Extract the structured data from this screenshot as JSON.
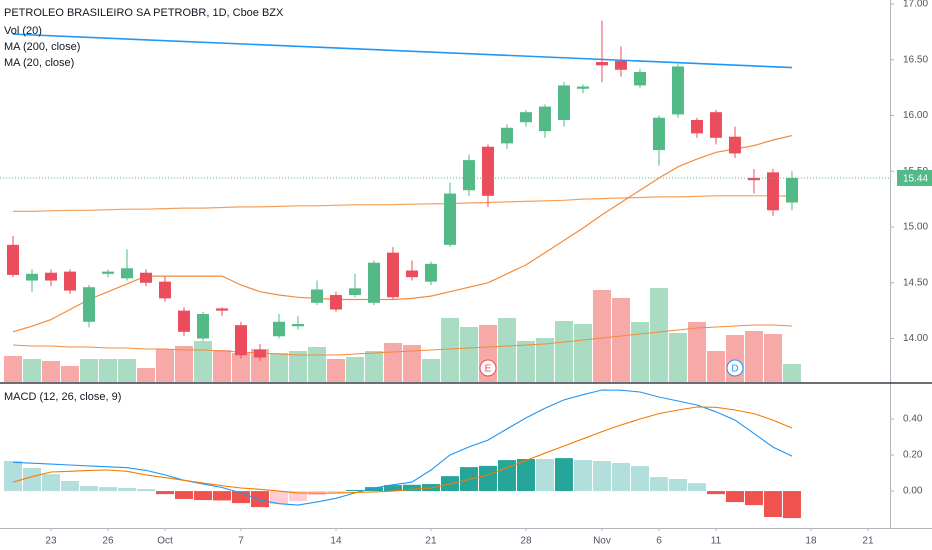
{
  "chart_data": [
    {
      "type": "candlestick",
      "title": "PETROLEO BRASILEIRO SA PETROBR, 1D, Cboe BZX",
      "open": [
        14.84,
        14.52,
        14.59,
        14.6,
        14.15,
        14.58,
        14.54,
        14.59,
        14.51,
        14.25,
        14.0,
        14.27,
        14.12,
        13.9,
        14.02,
        14.11,
        14.32,
        14.39,
        14.39,
        14.32,
        14.77,
        14.61,
        14.51,
        14.84,
        15.33,
        15.72,
        15.75,
        15.94,
        15.86,
        15.96,
        16.24,
        16.48,
        16.49,
        16.27,
        15.69,
        16.01,
        15.96,
        16.03,
        15.81,
        15.44,
        15.49,
        15.22
      ],
      "high": [
        14.92,
        14.62,
        14.62,
        14.62,
        14.48,
        14.62,
        14.8,
        14.62,
        14.56,
        14.28,
        14.24,
        14.28,
        14.15,
        13.95,
        14.22,
        14.2,
        14.52,
        14.42,
        14.58,
        14.7,
        14.82,
        14.7,
        14.69,
        15.4,
        15.65,
        15.74,
        15.92,
        16.05,
        16.1,
        16.3,
        16.28,
        16.85,
        16.62,
        16.42,
        16.0,
        16.46,
        15.98,
        16.05,
        15.9,
        15.52,
        15.52,
        15.5
      ],
      "low": [
        14.55,
        14.42,
        14.47,
        14.4,
        14.1,
        14.55,
        14.52,
        14.47,
        14.33,
        14.02,
        13.98,
        14.2,
        13.82,
        13.8,
        14.0,
        14.08,
        14.3,
        14.24,
        14.37,
        14.3,
        14.35,
        14.52,
        14.48,
        14.82,
        15.28,
        15.18,
        15.7,
        15.9,
        15.8,
        15.9,
        16.2,
        16.3,
        16.35,
        16.25,
        15.55,
        15.98,
        15.8,
        15.74,
        15.62,
        15.3,
        15.1,
        15.15
      ],
      "close": [
        14.57,
        14.58,
        14.52,
        14.43,
        14.46,
        14.6,
        14.63,
        14.5,
        14.36,
        14.06,
        14.22,
        14.25,
        13.85,
        13.83,
        14.15,
        14.13,
        14.44,
        14.26,
        14.45,
        14.68,
        14.37,
        14.55,
        14.67,
        15.3,
        15.6,
        15.28,
        15.89,
        16.03,
        16.08,
        16.27,
        16.26,
        16.45,
        16.41,
        16.39,
        15.98,
        16.44,
        15.84,
        15.8,
        15.66,
        15.42,
        15.15,
        15.44
      ],
      "up_color": "#53b987",
      "down_color": "#eb4d5c",
      "last_value": 15.44,
      "ylim": [
        13.61,
        17.036
      ],
      "yticks": [
        {
          "value": 14,
          "label": "14.00"
        },
        {
          "value": 14.5,
          "label": "14.50"
        },
        {
          "value": 15,
          "label": "15.00"
        },
        {
          "value": 15.5,
          "label": "15.50"
        },
        {
          "value": 16,
          "label": "16.00"
        },
        {
          "value": 16.5,
          "label": "16.50"
        },
        {
          "value": 17,
          "label": "17.00"
        }
      ],
      "xlim": [
        -0.684,
        46.16
      ],
      "xticks": [
        {
          "value": 2,
          "label": "23"
        },
        {
          "value": 5,
          "label": "26"
        },
        {
          "value": 8,
          "label": "Oct"
        },
        {
          "value": 12,
          "label": "7"
        },
        {
          "value": 17,
          "label": "14"
        },
        {
          "value": 22,
          "label": "21"
        },
        {
          "value": 27,
          "label": "28"
        },
        {
          "value": 31,
          "label": "Nov"
        },
        {
          "value": 34,
          "label": "6"
        },
        {
          "value": 37,
          "label": "11"
        },
        {
          "value": 42,
          "label": "18"
        },
        {
          "value": 45,
          "label": "21"
        }
      ],
      "series": [
        {
          "name": "MA (200, close)",
          "color": "#f5a05a",
          "values": [
            15.14,
            15.14,
            15.145,
            15.15,
            15.15,
            15.155,
            15.16,
            15.16,
            15.165,
            15.17,
            15.17,
            15.175,
            15.18,
            15.18,
            15.185,
            15.19,
            15.19,
            15.195,
            15.2,
            15.2,
            15.2,
            15.205,
            15.207,
            15.21,
            15.215,
            15.22,
            15.225,
            15.23,
            15.235,
            15.24,
            15.25,
            15.255,
            15.26,
            15.265,
            15.27,
            15.27,
            15.275,
            15.28,
            15.28,
            15.28,
            15.28,
            15.275
          ]
        },
        {
          "name": "MA (20, close)",
          "color": "#f28b3c",
          "values": [
            14.06,
            14.11,
            14.17,
            14.26,
            14.35,
            14.42,
            14.49,
            14.56,
            14.56,
            14.56,
            14.56,
            14.56,
            14.48,
            14.42,
            14.39,
            14.37,
            14.36,
            14.35,
            14.35,
            14.35,
            14.35,
            14.36,
            14.38,
            14.42,
            14.46,
            14.5,
            14.58,
            14.66,
            14.77,
            14.88,
            14.99,
            15.11,
            15.22,
            15.33,
            15.44,
            15.54,
            15.61,
            15.67,
            15.7,
            15.73,
            15.78,
            15.82
          ]
        }
      ],
      "volume": {
        "name": "Vol (20)",
        "up_color": "#a9dcc3",
        "down_color": "#f7a9a7",
        "ma_color": "#f28b3c",
        "ylim": [
          0,
          382
        ],
        "values": [
          26,
          23,
          21,
          16,
          23,
          23,
          23,
          14,
          33,
          36,
          41,
          32,
          29,
          33,
          29,
          31,
          35,
          23,
          25,
          31,
          39,
          37,
          23,
          64,
          55,
          57,
          64,
          41,
          44,
          61,
          58,
          92,
          84,
          60,
          94,
          49,
          60,
          31,
          47,
          51,
          48,
          18
        ],
        "ma": [
          37,
          36,
          36,
          35,
          35,
          34,
          34,
          33,
          33,
          32,
          32,
          31,
          30,
          29,
          28,
          27,
          27,
          27,
          28,
          29,
          30,
          31,
          32,
          33,
          34,
          35,
          36,
          37,
          38,
          40,
          42,
          44,
          46,
          48,
          50,
          52,
          54,
          55,
          56,
          57,
          57,
          56
        ]
      },
      "trendline": {
        "color": "#2196f3",
        "values": [
          16.73,
          16.43
        ]
      },
      "events": [
        {
          "label": "E",
          "index": 25,
          "color": "#eb4d5c"
        },
        {
          "label": "D",
          "index": 38,
          "color": "#2196f3"
        }
      ]
    },
    {
      "type": "macd",
      "title": "MACD (12, 26, close, 9)",
      "histogram": [
        0.167,
        0.128,
        0.094,
        0.056,
        0.028,
        0.022,
        0.017,
        0.011,
        -0.017,
        -0.044,
        -0.05,
        -0.052,
        -0.067,
        -0.089,
        -0.072,
        -0.056,
        -0.022,
        -0.011,
        0.006,
        0.022,
        0.033,
        0.035,
        0.039,
        0.083,
        0.133,
        0.14,
        0.172,
        0.178,
        0.178,
        0.183,
        0.172,
        0.167,
        0.156,
        0.139,
        0.078,
        0.067,
        0.044,
        -0.017,
        -0.061,
        -0.078,
        -0.144,
        -0.15
      ],
      "histogram_colors": {
        "pos_up": "#26a69a",
        "pos_down": "#b2dfdb",
        "neg_down": "#ef5350",
        "neg_up": "#ffcdd2"
      },
      "series": [
        {
          "color": "#2196f3",
          "values": [
            0.16,
            0.155,
            0.15,
            0.145,
            0.14,
            0.135,
            0.13,
            0.115,
            0.09,
            0.06,
            0.04,
            0.02,
            -0.01,
            -0.05,
            -0.07,
            -0.078,
            -0.06,
            -0.04,
            -0.01,
            0.017,
            0.035,
            0.05,
            0.117,
            0.2,
            0.245,
            0.283,
            0.345,
            0.406,
            0.46,
            0.506,
            0.535,
            0.561,
            0.56,
            0.55,
            0.522,
            0.5,
            0.478,
            0.44,
            0.394,
            0.32,
            0.244,
            0.194
          ]
        },
        {
          "color": "#f57c00",
          "values": [
            0.05,
            0.08,
            0.106,
            0.11,
            0.115,
            0.117,
            0.11,
            0.09,
            0.075,
            0.06,
            0.045,
            0.03,
            0.017,
            0.01,
            0,
            -0.01,
            -0.012,
            -0.011,
            -0.008,
            -0.005,
            0,
            0.01,
            0.017,
            0.04,
            0.065,
            0.089,
            0.13,
            0.17,
            0.21,
            0.25,
            0.29,
            0.33,
            0.367,
            0.4,
            0.43,
            0.45,
            0.467,
            0.465,
            0.45,
            0.43,
            0.394,
            0.35
          ]
        }
      ],
      "ylim": [
        -0.205,
        0.6
      ],
      "yticks": [
        {
          "value": 0,
          "label": "0.00"
        },
        {
          "value": 0.2,
          "label": "0.20"
        },
        {
          "value": 0.4,
          "label": "0.40"
        }
      ]
    }
  ]
}
